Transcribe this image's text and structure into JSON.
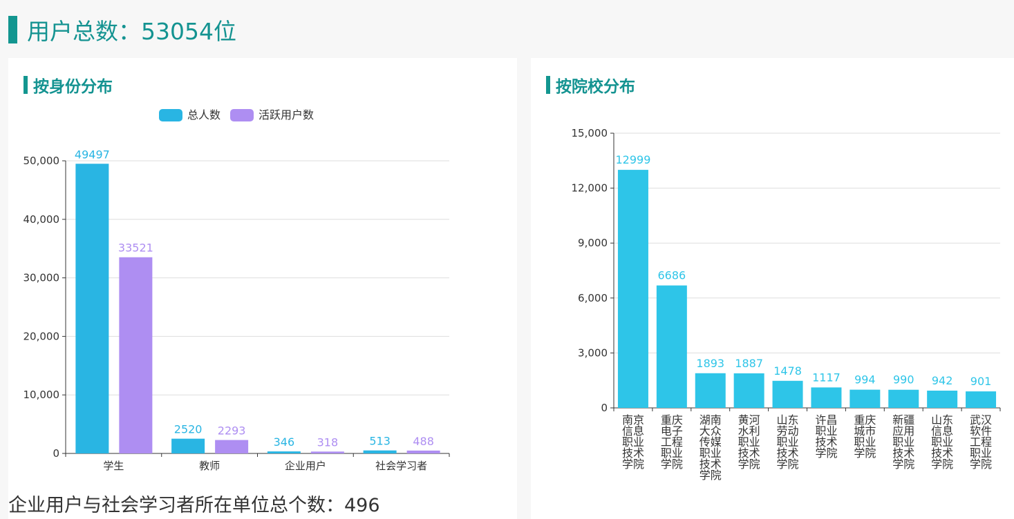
{
  "header": {
    "title": "用户总数：53054位"
  },
  "footer": {
    "text": "企业用户与社会学习者所在单位总个数：496"
  },
  "chart_data": [
    {
      "type": "bar",
      "title": "按身份分布",
      "categories": [
        "学生",
        "教师",
        "企业用户",
        "社会学习者"
      ],
      "series": [
        {
          "name": "总人数",
          "values": [
            49497,
            2520,
            346,
            513
          ],
          "color": "#29b5e3"
        },
        {
          "name": "活跃用户数",
          "values": [
            33521,
            2293,
            318,
            488
          ],
          "color": "#ae8ef2"
        }
      ],
      "ylim": [
        0,
        50000
      ],
      "yticks": [
        "0",
        "10,000",
        "20,000",
        "30,000",
        "40,000",
        "50,000"
      ],
      "grid": true,
      "legend": "top-center"
    },
    {
      "type": "bar",
      "title": "按院校分布",
      "categories": [
        "南京信息职业技术学院",
        "重庆电子工程职业学院",
        "湖南大众传媒职业技术学院",
        "黄河水利职业技术学院",
        "山东劳动职业技术学院",
        "许昌职业技术学院",
        "重庆城市职业学院",
        "新疆应用职业技术学院",
        "山东信息职业技术学院",
        "武汉软件工程职业学院"
      ],
      "values": [
        12999,
        6686,
        1893,
        1887,
        1478,
        1117,
        994,
        990,
        942,
        901
      ],
      "color": "#2ec5e8",
      "ylim": [
        0,
        15000
      ],
      "yticks": [
        "0",
        "3,000",
        "6,000",
        "9,000",
        "12,000",
        "15,000"
      ],
      "grid": true
    }
  ]
}
